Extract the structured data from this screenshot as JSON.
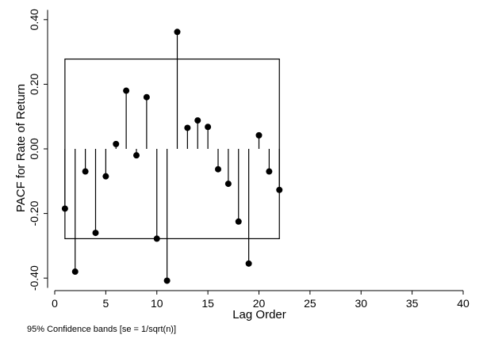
{
  "chart_data": {
    "type": "stem",
    "title": "",
    "xlabel": "Lag Order",
    "ylabel": "PACF for Rate of Return",
    "xlim": [
      0,
      40
    ],
    "ylim": [
      -0.43,
      0.43
    ],
    "xticks": [
      0,
      5,
      10,
      15,
      20,
      25,
      30,
      35,
      40
    ],
    "yticks": [
      -0.4,
      -0.2,
      0.0,
      0.2,
      0.4
    ],
    "ytick_labels": [
      "-0.40",
      "-0.20",
      "0.00",
      "0.20",
      "0.40"
    ],
    "grid": false,
    "series": [
      {
        "name": "PACF",
        "lags": [
          1,
          2,
          3,
          4,
          5,
          6,
          7,
          8,
          9,
          10,
          11,
          12,
          13,
          14,
          15,
          16,
          17,
          18,
          19,
          20,
          21,
          22
        ],
        "values": [
          -0.185,
          -0.38,
          -0.07,
          -0.26,
          -0.085,
          0.015,
          0.18,
          -0.02,
          0.16,
          -0.278,
          -0.408,
          0.362,
          0.065,
          0.088,
          0.068,
          -0.063,
          -0.108,
          -0.225,
          -0.355,
          0.042,
          -0.07,
          -0.127
        ]
      }
    ],
    "confidence_band": {
      "x_range": [
        1,
        22
      ],
      "upper": 0.278,
      "lower": -0.278
    },
    "note": "95% Confidence bands [se = 1/sqrt(n)]"
  },
  "colors": {
    "marker": "#000000",
    "axis": "#000000",
    "background": "#ffffff"
  }
}
